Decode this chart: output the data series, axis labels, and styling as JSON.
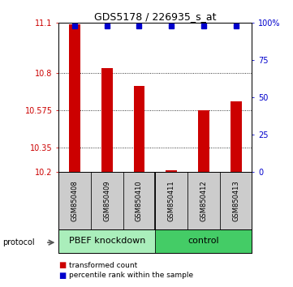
{
  "title": "GDS5178 / 226935_s_at",
  "samples": [
    "GSM850408",
    "GSM850409",
    "GSM850410",
    "GSM850411",
    "GSM850412",
    "GSM850413"
  ],
  "red_values": [
    11.09,
    10.83,
    10.72,
    10.21,
    10.575,
    10.625
  ],
  "blue_values": [
    98,
    98,
    98,
    98,
    98,
    98
  ],
  "ylim_left": [
    10.2,
    11.1
  ],
  "ylim_right": [
    0,
    100
  ],
  "yticks_left": [
    10.2,
    10.35,
    10.575,
    10.8,
    11.1
  ],
  "yticks_right": [
    0,
    25,
    50,
    75,
    100
  ],
  "ytick_labels_left": [
    "10.2",
    "10.35",
    "10.575",
    "10.8",
    "11.1"
  ],
  "ytick_labels_right": [
    "0",
    "25",
    "50",
    "75",
    "100%"
  ],
  "bar_color": "#CC0000",
  "blue_marker_color": "#0000CC",
  "group1_label": "PBEF knockdown",
  "group1_color": "#aaeebb",
  "group2_label": "control",
  "group2_color": "#44cc66",
  "sample_box_color": "#cccccc",
  "protocol_label": "protocol",
  "legend_items": [
    {
      "color": "#CC0000",
      "label": "transformed count"
    },
    {
      "color": "#0000CC",
      "label": "percentile rank within the sample"
    }
  ],
  "bar_width": 0.35,
  "title_fontsize": 9,
  "tick_fontsize": 7,
  "sample_fontsize": 6,
  "group_fontsize": 8
}
